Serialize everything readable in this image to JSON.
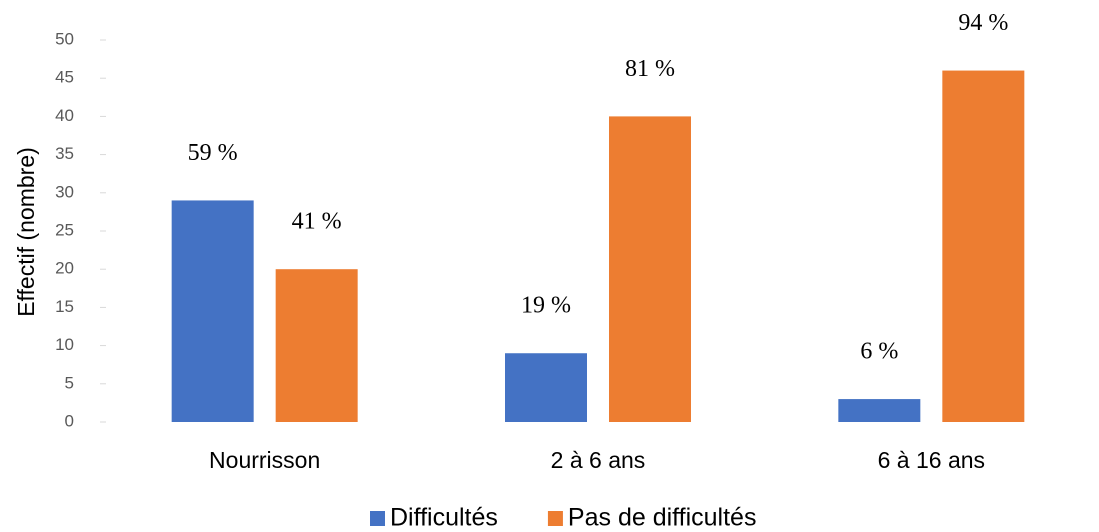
{
  "chart_data": {
    "type": "bar",
    "y_label": "Effectif (nombre)",
    "categories": [
      "Nourrisson",
      "2 à 6 ans",
      "6 à 16 ans"
    ],
    "series": [
      {
        "name": "Difficultés",
        "color": "#4472c4",
        "values": [
          29,
          9,
          3
        ],
        "labels": [
          "59 %",
          "19 %",
          "6 %"
        ]
      },
      {
        "name": "Pas de difficultés",
        "color": "#ed7d31",
        "values": [
          20,
          40,
          46
        ],
        "labels": [
          "41 %",
          "81 %",
          "94 %"
        ]
      }
    ],
    "ylim": [
      0,
      50
    ],
    "yticks": [
      0,
      5,
      10,
      15,
      20,
      25,
      30,
      35,
      40,
      45,
      50
    ],
    "legend": "bottom"
  }
}
